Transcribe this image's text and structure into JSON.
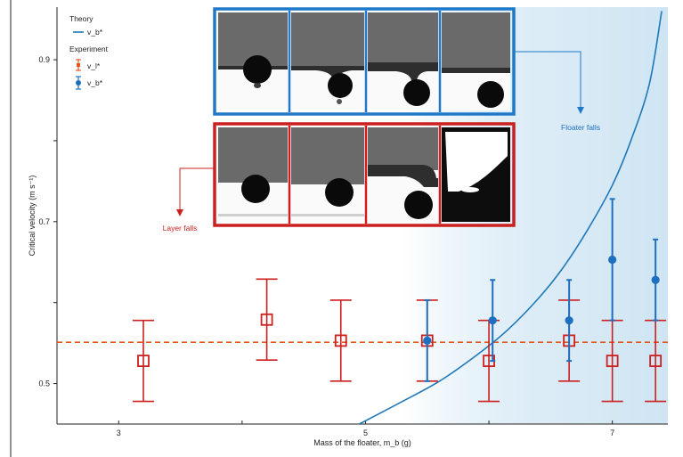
{
  "colors": {
    "theory": "#1f78b8",
    "blue_points": "#1f6fc0",
    "red_points": "#cc1f1f",
    "dashed_line": "#e0571f",
    "shade": "#cfe5f3",
    "frame_blue": "#1f78c8",
    "frame_red": "#cc1f1f"
  },
  "legend": {
    "theory_heading": "Theory",
    "theory_item": "v_b*",
    "experiment_heading": "Experiment",
    "exp_red_item": "v_l*",
    "exp_blue_item": "v_b*"
  },
  "annotations": {
    "floater_falls": "Floater falls",
    "layer_falls": "Layer falls"
  },
  "chart_data": {
    "type": "scatter",
    "xlabel": "Mass of the floater, m_b (g)",
    "ylabel": "Critical velocity (m s⁻¹)",
    "xlim": [
      2.5,
      7.45
    ],
    "ylim": [
      0.45,
      0.965
    ],
    "x_ticks": [
      3,
      4,
      5,
      6,
      7
    ],
    "x_tick_labels": [
      "3",
      "",
      "5",
      "",
      "7"
    ],
    "y_ticks": [
      0.5,
      0.6,
      0.7,
      0.8,
      0.9
    ],
    "y_tick_labels": [
      "0.5",
      "",
      "0.7",
      "",
      "0.9"
    ],
    "grid": false,
    "legend_position": "top-left",
    "dashed_line_y": 0.551,
    "series": [
      {
        "name": "v_l*",
        "marker": "open-square",
        "points": [
          {
            "x": 3.2,
            "y": 0.528,
            "ylo": 0.478,
            "yhi": 0.578
          },
          {
            "x": 4.2,
            "y": 0.579,
            "ylo": 0.529,
            "yhi": 0.629
          },
          {
            "x": 4.8,
            "y": 0.553,
            "ylo": 0.503,
            "yhi": 0.603
          },
          {
            "x": 5.5,
            "y": 0.553,
            "ylo": 0.503,
            "yhi": 0.603
          },
          {
            "x": 6.0,
            "y": 0.528,
            "ylo": 0.478,
            "yhi": 0.578
          },
          {
            "x": 6.65,
            "y": 0.553,
            "ylo": 0.503,
            "yhi": 0.603
          },
          {
            "x": 7.0,
            "y": 0.528,
            "ylo": 0.478,
            "yhi": 0.578
          },
          {
            "x": 7.35,
            "y": 0.528,
            "ylo": 0.478,
            "yhi": 0.578
          }
        ]
      },
      {
        "name": "v_b*",
        "marker": "filled-circle",
        "points": [
          {
            "x": 5.5,
            "y": 0.553,
            "ylo": 0.503,
            "yhi": 0.603
          },
          {
            "x": 6.03,
            "y": 0.578,
            "ylo": 0.528,
            "yhi": 0.628
          },
          {
            "x": 6.65,
            "y": 0.578,
            "ylo": 0.528,
            "yhi": 0.628
          },
          {
            "x": 7.0,
            "y": 0.653,
            "ylo": 0.578,
            "yhi": 0.728
          },
          {
            "x": 7.35,
            "y": 0.628,
            "ylo": 0.578,
            "yhi": 0.678
          }
        ]
      }
    ],
    "theory_curve": {
      "name": "v_b*",
      "x": [
        4.95,
        5.3,
        5.6,
        5.9,
        6.15,
        6.4,
        6.6,
        6.8,
        7.0,
        7.15,
        7.3,
        7.4
      ],
      "y": [
        0.45,
        0.478,
        0.503,
        0.535,
        0.566,
        0.605,
        0.643,
        0.69,
        0.745,
        0.8,
        0.87,
        0.96
      ]
    },
    "shade_from_x": 5.3
  }
}
